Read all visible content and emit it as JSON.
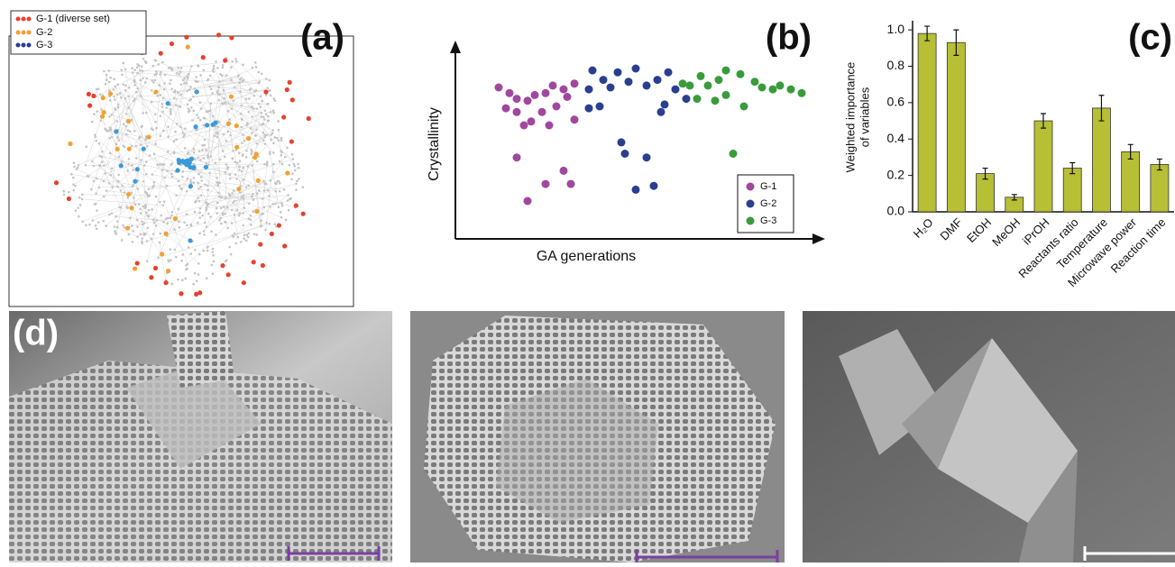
{
  "network_panel": {
    "panel_label": "(a)",
    "legend": [
      "G-1 (diverse set)",
      "G-2",
      "G-3"
    ]
  },
  "chart_data": [
    {
      "type": "scatter",
      "panel_label": "(b)",
      "xlabel": "GA generations",
      "ylabel": "Crystallinity",
      "xlim": [
        0,
        100
      ],
      "ylim": [
        0,
        100
      ],
      "series": [
        {
          "name": "G-1",
          "color": "#a0479e",
          "x": [
            12,
            15,
            17,
            14,
            17,
            20,
            22,
            25,
            27,
            30,
            33,
            31,
            28,
            24,
            21,
            19,
            26,
            33,
            17,
            30,
            25,
            32,
            20
          ],
          "values": [
            80,
            77,
            74,
            69,
            67,
            73,
            76,
            77,
            81,
            79,
            82,
            75,
            70,
            67,
            62,
            60,
            60,
            63,
            43,
            36,
            29,
            29,
            20
          ]
        },
        {
          "name": "G-2",
          "color": "#2a3f8f",
          "x": [
            38,
            41,
            37,
            43,
            45,
            48,
            50,
            53,
            56,
            59,
            61,
            58,
            57,
            37,
            40,
            46,
            47,
            53,
            50,
            55,
            64
          ],
          "values": [
            89,
            84,
            79,
            80,
            88,
            83,
            90,
            81,
            84,
            88,
            79,
            71,
            67,
            69,
            70,
            51,
            45,
            43,
            26,
            28,
            74
          ]
        },
        {
          "name": "G-3",
          "color": "#3a9b3c",
          "x": [
            63,
            65,
            68,
            70,
            73,
            75,
            79,
            83,
            85,
            88,
            90,
            93,
            96,
            75,
            72,
            80,
            67,
            77
          ],
          "values": [
            82,
            81,
            86,
            81,
            84,
            89,
            87,
            83,
            80,
            79,
            81,
            79,
            77,
            76,
            73,
            70,
            74,
            45
          ]
        }
      ]
    },
    {
      "type": "bar",
      "panel_label": "(c)",
      "ylabel": [
        "Weighted importance",
        "of variables"
      ],
      "categories": [
        "H₂O",
        "DMF",
        "EtOH",
        "MeOH",
        "iPrOH",
        "Reactants ratio",
        "Temperature",
        "Microwave power",
        "Reaction time"
      ],
      "values": [
        0.98,
        0.93,
        0.21,
        0.08,
        0.5,
        0.24,
        0.57,
        0.33,
        0.26
      ],
      "errors": [
        0.04,
        0.07,
        0.03,
        0.015,
        0.04,
        0.03,
        0.07,
        0.04,
        0.03
      ],
      "color": "#b7bf34",
      "ylim": [
        0,
        1.05
      ],
      "yticks": [
        {
          "value": 0,
          "label": "0.0"
        },
        0.2,
        0.4,
        0.6,
        0.8,
        {
          "value": 1,
          "label": "1.0"
        }
      ]
    }
  ],
  "image_panel": {
    "panel_label": "(d)"
  }
}
